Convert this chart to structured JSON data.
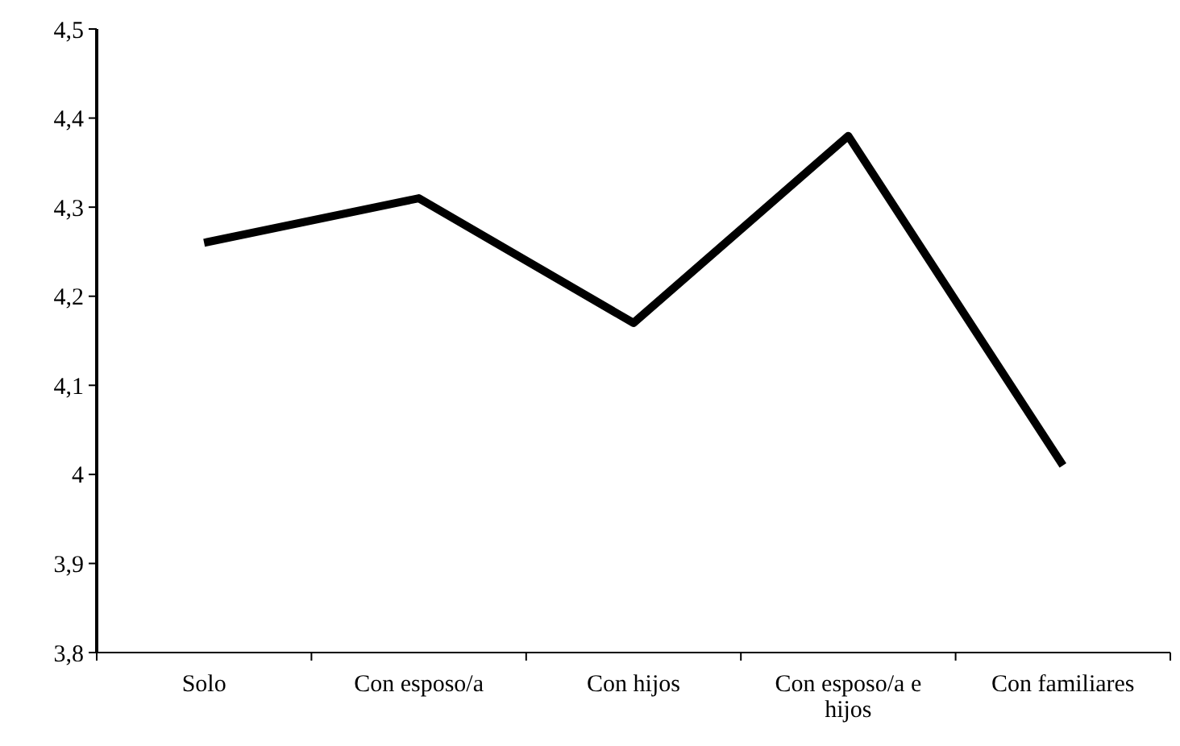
{
  "chart_data": {
    "type": "line",
    "categories": [
      "Solo",
      "Con esposo/a",
      "Con hijos",
      "Con esposo/a e hijos",
      "Con familiares"
    ],
    "series": [
      {
        "color": "#000000",
        "values": [
          4.26,
          4.31,
          4.17,
          4.38,
          4.01
        ]
      }
    ],
    "ylim": [
      3.8,
      4.5
    ],
    "yticks": [
      {
        "value": 3.8,
        "label": "3,8"
      },
      {
        "value": 3.9,
        "label": "3,9"
      },
      4,
      {
        "value": 4.1,
        "label": "4,1"
      },
      {
        "value": 4.2,
        "label": "4,2"
      },
      {
        "value": 4.3,
        "label": "4,3"
      },
      {
        "value": 4.4,
        "label": "4,4"
      },
      {
        "value": 4.5,
        "label": "4,5"
      }
    ],
    "grid": false,
    "marker": "none",
    "line_style": "solid"
  }
}
